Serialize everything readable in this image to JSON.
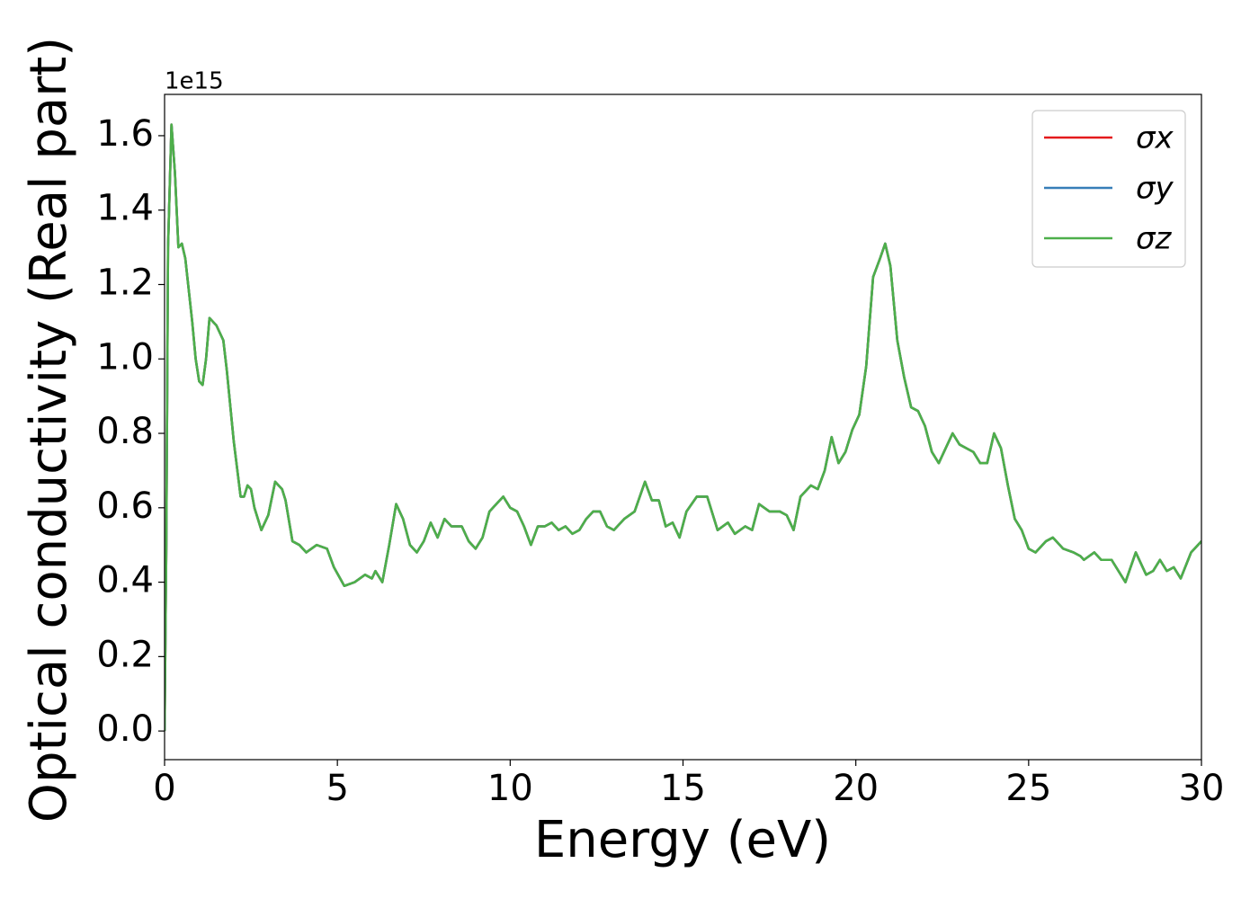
{
  "chart_data": {
    "type": "line",
    "xlabel": "Energy (eV)",
    "ylabel": "Optical conductivity (Real part)",
    "offset_label": "1e15",
    "xlim": [
      0,
      30
    ],
    "ylim": [
      -0.077,
      1.711
    ],
    "xticks": [
      0,
      5,
      10,
      15,
      20,
      25,
      30
    ],
    "yticks": [
      {
        "value": 0,
        "label": "0.0"
      },
      {
        "value": 0.2,
        "label": "0.2"
      },
      {
        "value": 0.4,
        "label": "0.4"
      },
      {
        "value": 0.6,
        "label": "0.6"
      },
      {
        "value": 0.8,
        "label": "0.8"
      },
      {
        "value": 1.0,
        "label": "1.0"
      },
      {
        "value": 1.2,
        "label": "1.2"
      },
      {
        "value": 1.4,
        "label": "1.4"
      },
      {
        "value": 1.6,
        "label": "1.6"
      }
    ],
    "grid": false,
    "legend": "upper right",
    "x": [
      0,
      0.05,
      0.1,
      0.2,
      0.3,
      0.4,
      0.5,
      0.6,
      0.8,
      0.9,
      1.0,
      1.1,
      1.2,
      1.3,
      1.5,
      1.7,
      1.8,
      2.0,
      2.2,
      2.3,
      2.4,
      2.5,
      2.6,
      2.8,
      3.0,
      3.2,
      3.4,
      3.5,
      3.7,
      3.9,
      4.1,
      4.4,
      4.7,
      4.9,
      5.2,
      5.5,
      5.8,
      6.0,
      6.1,
      6.3,
      6.5,
      6.7,
      6.9,
      7.1,
      7.3,
      7.5,
      7.7,
      7.9,
      8.1,
      8.3,
      8.6,
      8.8,
      9.0,
      9.2,
      9.4,
      9.6,
      9.8,
      10.0,
      10.2,
      10.4,
      10.6,
      10.8,
      11.0,
      11.2,
      11.4,
      11.6,
      11.8,
      12.0,
      12.2,
      12.4,
      12.6,
      12.8,
      13.0,
      13.3,
      13.6,
      13.9,
      14.1,
      14.3,
      14.5,
      14.7,
      14.9,
      15.1,
      15.4,
      15.7,
      16.0,
      16.3,
      16.5,
      16.8,
      17.0,
      17.2,
      17.5,
      17.8,
      18.0,
      18.2,
      18.4,
      18.7,
      18.9,
      19.1,
      19.3,
      19.5,
      19.7,
      19.9,
      20.1,
      20.3,
      20.5,
      20.7,
      20.85,
      21.0,
      21.2,
      21.4,
      21.6,
      21.8,
      22.0,
      22.2,
      22.4,
      22.6,
      22.8,
      23.0,
      23.2,
      23.4,
      23.6,
      23.8,
      24.0,
      24.2,
      24.4,
      24.6,
      24.8,
      25.0,
      25.2,
      25.5,
      25.7,
      26.0,
      26.3,
      26.5,
      26.6,
      26.9,
      27.1,
      27.4,
      27.8,
      28.1,
      28.4,
      28.6,
      28.8,
      29.0,
      29.2,
      29.4,
      29.7,
      30.0
    ],
    "series": [
      {
        "name": "σx",
        "color": "#e41a1c",
        "values": [
          0.0,
          0.5,
          1.3,
          1.63,
          1.5,
          1.3,
          1.31,
          1.27,
          1.1,
          1.0,
          0.94,
          0.93,
          1.0,
          1.11,
          1.09,
          1.05,
          0.97,
          0.78,
          0.63,
          0.63,
          0.66,
          0.65,
          0.6,
          0.54,
          0.58,
          0.67,
          0.65,
          0.62,
          0.51,
          0.5,
          0.48,
          0.5,
          0.49,
          0.44,
          0.39,
          0.4,
          0.42,
          0.41,
          0.43,
          0.4,
          0.5,
          0.61,
          0.57,
          0.5,
          0.48,
          0.51,
          0.56,
          0.52,
          0.57,
          0.55,
          0.55,
          0.51,
          0.49,
          0.52,
          0.59,
          0.61,
          0.63,
          0.6,
          0.59,
          0.55,
          0.5,
          0.55,
          0.55,
          0.56,
          0.54,
          0.55,
          0.53,
          0.54,
          0.57,
          0.59,
          0.59,
          0.55,
          0.54,
          0.57,
          0.59,
          0.67,
          0.62,
          0.62,
          0.55,
          0.56,
          0.52,
          0.59,
          0.63,
          0.63,
          0.54,
          0.56,
          0.53,
          0.55,
          0.54,
          0.61,
          0.59,
          0.59,
          0.58,
          0.54,
          0.63,
          0.66,
          0.65,
          0.7,
          0.79,
          0.72,
          0.75,
          0.81,
          0.85,
          0.98,
          1.22,
          1.27,
          1.31,
          1.25,
          1.05,
          0.95,
          0.87,
          0.86,
          0.82,
          0.75,
          0.72,
          0.76,
          0.8,
          0.77,
          0.76,
          0.75,
          0.72,
          0.72,
          0.8,
          0.76,
          0.66,
          0.57,
          0.54,
          0.49,
          0.48,
          0.51,
          0.52,
          0.49,
          0.48,
          0.47,
          0.46,
          0.48,
          0.46,
          0.46,
          0.4,
          0.48,
          0.42,
          0.43,
          0.46,
          0.43,
          0.44,
          0.41,
          0.48,
          0.51
        ]
      },
      {
        "name": "σy",
        "color": "#377eb8",
        "values": [
          0.0,
          0.5,
          1.3,
          1.63,
          1.5,
          1.3,
          1.31,
          1.27,
          1.1,
          1.0,
          0.94,
          0.93,
          1.0,
          1.11,
          1.09,
          1.05,
          0.97,
          0.78,
          0.63,
          0.63,
          0.66,
          0.65,
          0.6,
          0.54,
          0.58,
          0.67,
          0.65,
          0.62,
          0.51,
          0.5,
          0.48,
          0.5,
          0.49,
          0.44,
          0.39,
          0.4,
          0.42,
          0.41,
          0.43,
          0.4,
          0.5,
          0.61,
          0.57,
          0.5,
          0.48,
          0.51,
          0.56,
          0.52,
          0.57,
          0.55,
          0.55,
          0.51,
          0.49,
          0.52,
          0.59,
          0.61,
          0.63,
          0.6,
          0.59,
          0.55,
          0.5,
          0.55,
          0.55,
          0.56,
          0.54,
          0.55,
          0.53,
          0.54,
          0.57,
          0.59,
          0.59,
          0.55,
          0.54,
          0.57,
          0.59,
          0.67,
          0.62,
          0.62,
          0.55,
          0.56,
          0.52,
          0.59,
          0.63,
          0.63,
          0.54,
          0.56,
          0.53,
          0.55,
          0.54,
          0.61,
          0.59,
          0.59,
          0.58,
          0.54,
          0.63,
          0.66,
          0.65,
          0.7,
          0.79,
          0.72,
          0.75,
          0.81,
          0.85,
          0.98,
          1.22,
          1.27,
          1.31,
          1.25,
          1.05,
          0.95,
          0.87,
          0.86,
          0.82,
          0.75,
          0.72,
          0.76,
          0.8,
          0.77,
          0.76,
          0.75,
          0.72,
          0.72,
          0.8,
          0.76,
          0.66,
          0.57,
          0.54,
          0.49,
          0.48,
          0.51,
          0.52,
          0.49,
          0.48,
          0.47,
          0.46,
          0.48,
          0.46,
          0.46,
          0.4,
          0.48,
          0.42,
          0.43,
          0.46,
          0.43,
          0.44,
          0.41,
          0.48,
          0.51
        ]
      },
      {
        "name": "σz",
        "color": "#4daf4a",
        "values": [
          0.0,
          0.5,
          1.3,
          1.63,
          1.5,
          1.3,
          1.31,
          1.27,
          1.1,
          1.0,
          0.94,
          0.93,
          1.0,
          1.11,
          1.09,
          1.05,
          0.97,
          0.78,
          0.63,
          0.63,
          0.66,
          0.65,
          0.6,
          0.54,
          0.58,
          0.67,
          0.65,
          0.62,
          0.51,
          0.5,
          0.48,
          0.5,
          0.49,
          0.44,
          0.39,
          0.4,
          0.42,
          0.41,
          0.43,
          0.4,
          0.5,
          0.61,
          0.57,
          0.5,
          0.48,
          0.51,
          0.56,
          0.52,
          0.57,
          0.55,
          0.55,
          0.51,
          0.49,
          0.52,
          0.59,
          0.61,
          0.63,
          0.6,
          0.59,
          0.55,
          0.5,
          0.55,
          0.55,
          0.56,
          0.54,
          0.55,
          0.53,
          0.54,
          0.57,
          0.59,
          0.59,
          0.55,
          0.54,
          0.57,
          0.59,
          0.67,
          0.62,
          0.62,
          0.55,
          0.56,
          0.52,
          0.59,
          0.63,
          0.63,
          0.54,
          0.56,
          0.53,
          0.55,
          0.54,
          0.61,
          0.59,
          0.59,
          0.58,
          0.54,
          0.63,
          0.66,
          0.65,
          0.7,
          0.79,
          0.72,
          0.75,
          0.81,
          0.85,
          0.98,
          1.22,
          1.27,
          1.31,
          1.25,
          1.05,
          0.95,
          0.87,
          0.86,
          0.82,
          0.75,
          0.72,
          0.76,
          0.8,
          0.77,
          0.76,
          0.75,
          0.72,
          0.72,
          0.8,
          0.76,
          0.66,
          0.57,
          0.54,
          0.49,
          0.48,
          0.51,
          0.52,
          0.49,
          0.48,
          0.47,
          0.46,
          0.48,
          0.46,
          0.46,
          0.4,
          0.48,
          0.42,
          0.43,
          0.46,
          0.43,
          0.44,
          0.41,
          0.48,
          0.51
        ]
      }
    ]
  }
}
